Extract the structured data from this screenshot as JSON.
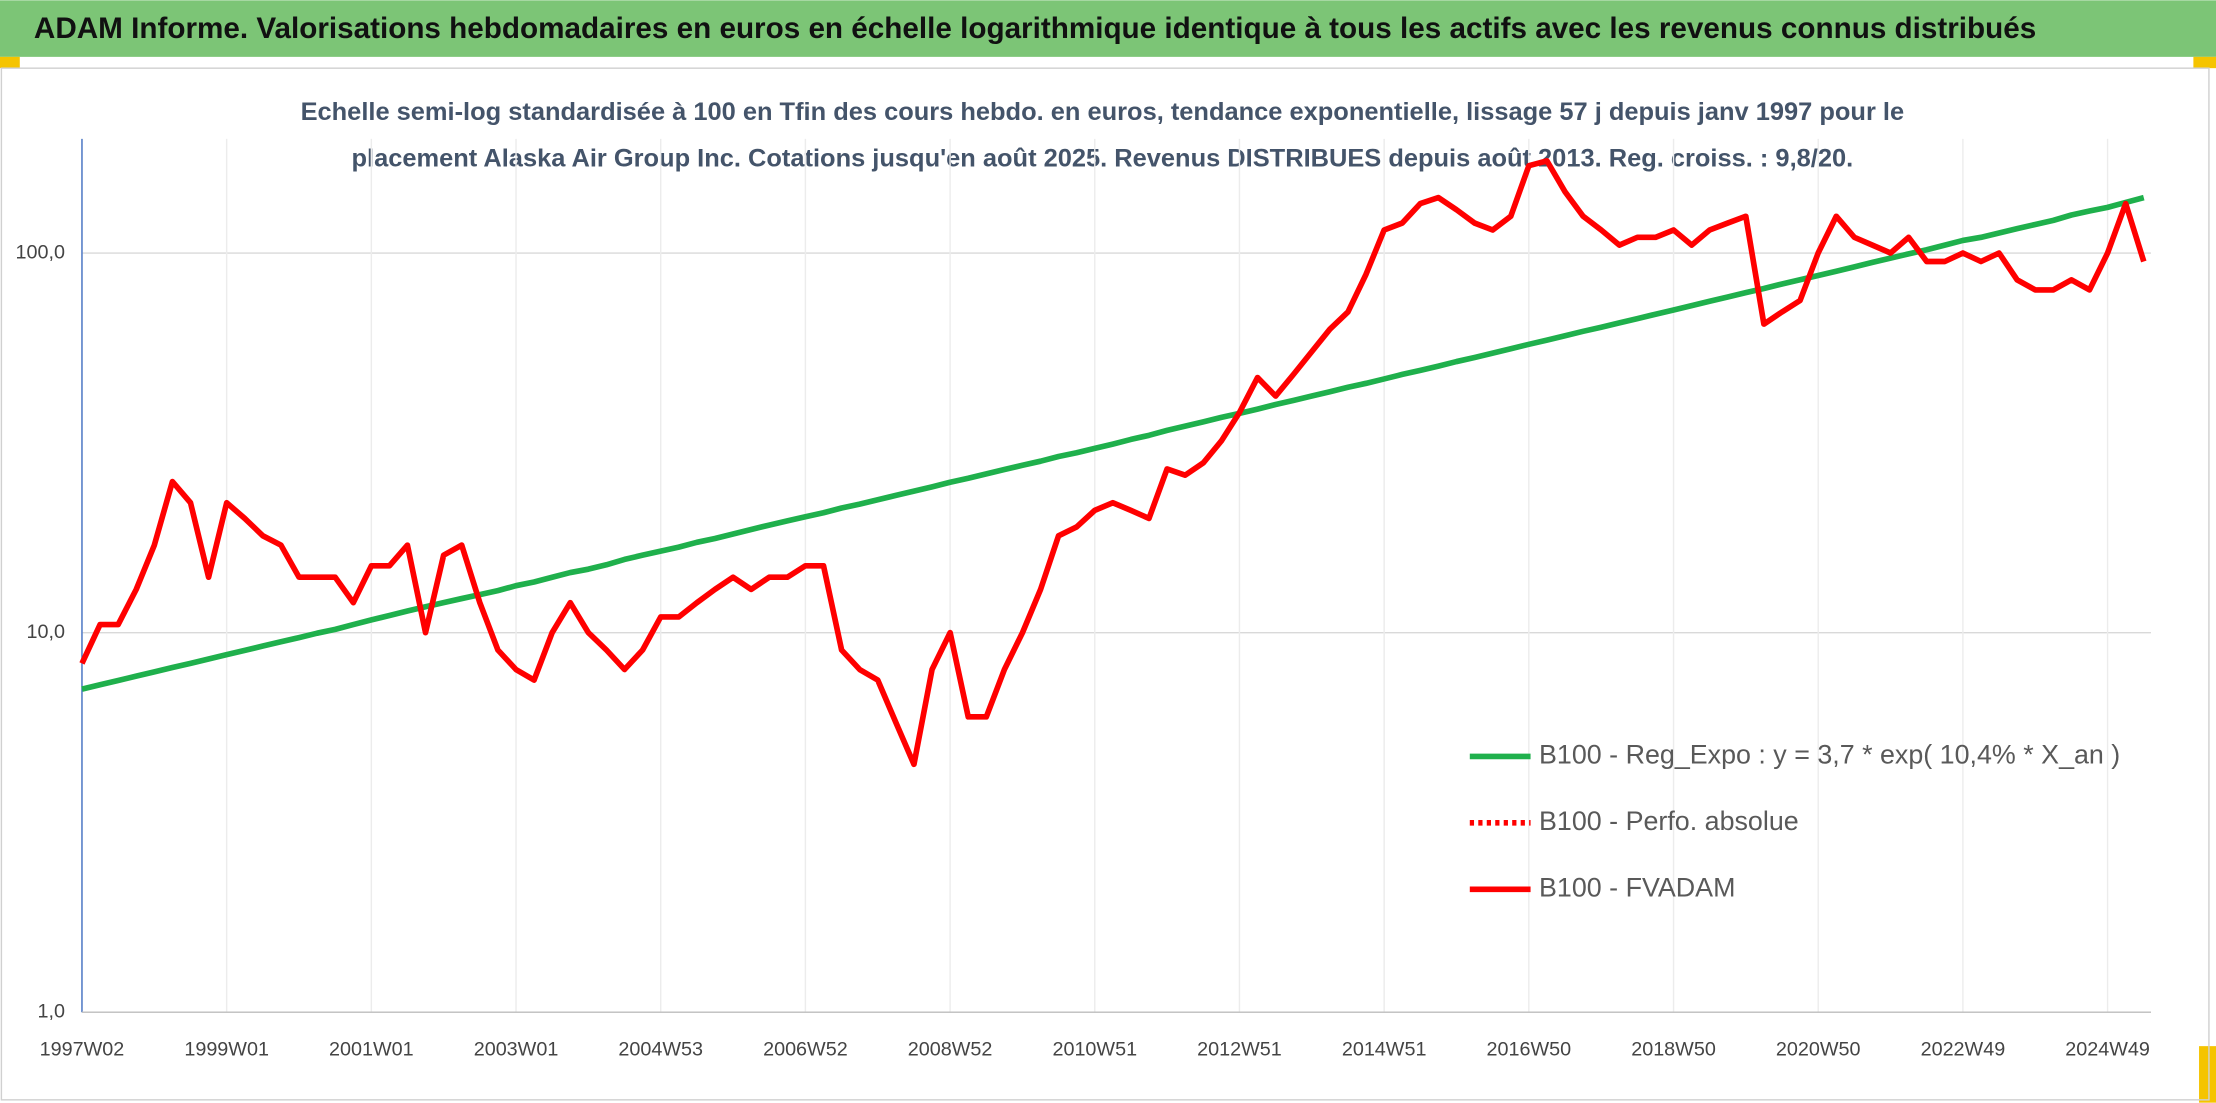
{
  "chart_data": {
    "type": "line",
    "title": "ADAM Informe. Valorisations hebdomadaires en euros en échelle logarithmique identique à tous les actifs avec les revenus connus distribués",
    "subtitle": [
      "Echelle semi-log standardisée à 100 en Tfin des cours hebdo. en euros, tendance exponentielle, lissage 57 j depuis janv 1997 pour le",
      "placement Alaska Air Group Inc. Cotations jusqu'en août 2025. Revenus DISTRIBUES depuis août 2013. Reg. croiss. : 9,8/20."
    ],
    "categories": [
      "1997W02",
      null,
      null,
      null,
      null,
      null,
      null,
      null,
      "1999W01",
      null,
      null,
      null,
      null,
      null,
      null,
      null,
      "2001W01",
      null,
      null,
      null,
      null,
      null,
      null,
      null,
      "2003W01",
      null,
      null,
      null,
      null,
      null,
      null,
      null,
      "2004W53",
      null,
      null,
      null,
      null,
      null,
      null,
      null,
      "2006W52",
      null,
      null,
      null,
      null,
      null,
      null,
      null,
      "2008W52",
      null,
      null,
      null,
      null,
      null,
      null,
      null,
      "2010W51",
      null,
      null,
      null,
      null,
      null,
      null,
      null,
      "2012W51",
      null,
      null,
      null,
      null,
      null,
      null,
      null,
      "2014W51",
      null,
      null,
      null,
      null,
      null,
      null,
      null,
      "2016W50",
      null,
      null,
      null,
      null,
      null,
      null,
      null,
      "2018W50",
      null,
      null,
      null,
      null,
      null,
      null,
      null,
      "2020W50",
      null,
      null,
      null,
      null,
      null,
      null,
      null,
      "2022W49",
      null,
      null,
      null,
      null,
      null,
      null,
      null,
      "2024W49",
      null,
      null
    ],
    "series": [
      {
        "name": "B100 - Reg_Expo : y = 3,7 * exp( 10,4% *  X_an )",
        "color": "#1fb04c",
        "dash": "solid",
        "values": [
          7.1,
          7.29,
          7.48,
          7.68,
          7.88,
          8.09,
          8.3,
          8.52,
          8.75,
          8.98,
          9.22,
          9.46,
          9.71,
          9.97,
          10.2,
          10.5,
          10.8,
          11.1,
          11.4,
          11.7,
          12.0,
          12.3,
          12.6,
          12.9,
          13.3,
          13.6,
          14.0,
          14.4,
          14.7,
          15.1,
          15.6,
          16.0,
          16.4,
          16.8,
          17.3,
          17.7,
          18.2,
          18.7,
          19.2,
          19.7,
          20.2,
          20.7,
          21.3,
          21.8,
          22.4,
          23.0,
          23.6,
          24.2,
          24.9,
          25.5,
          26.2,
          26.9,
          27.6,
          28.3,
          29.1,
          29.8,
          30.6,
          31.4,
          32.3,
          33.1,
          34.1,
          35.0,
          35.9,
          36.9,
          37.8,
          38.8,
          39.9,
          40.9,
          42.0,
          43.1,
          44.3,
          45.4,
          46.6,
          47.9,
          49.1,
          50.4,
          51.8,
          53.1,
          54.5,
          56.0,
          57.5,
          59.0,
          60.6,
          62.2,
          63.8,
          65.5,
          67.2,
          69.0,
          70.8,
          72.7,
          74.7,
          76.6,
          78.7,
          80.7,
          82.9,
          85.1,
          87.3,
          89.6,
          92.0,
          94.5,
          97.0,
          99.5,
          102,
          105,
          108,
          110,
          113,
          116,
          119,
          122,
          126,
          129,
          132,
          136,
          140
        ]
      },
      {
        "name": "B100 - Perfo. absolue",
        "color": "#ff0000",
        "dash": "dotted"
      },
      {
        "name": "B100 - FVADAM",
        "color": "#ff0000",
        "dash": "solid",
        "values": [
          8.3,
          10.5,
          10.5,
          13,
          17,
          25,
          22,
          14,
          22,
          20,
          18,
          17,
          14,
          14,
          14,
          12,
          15,
          15,
          17,
          10,
          16,
          17,
          12,
          9,
          8,
          7.5,
          10,
          12,
          10,
          9,
          8,
          9,
          11,
          11,
          12,
          13,
          14,
          13,
          14,
          14,
          15,
          15,
          9,
          8,
          7.5,
          5.8,
          4.5,
          8,
          10,
          6,
          6,
          8,
          10,
          13,
          18,
          19,
          21,
          22,
          21,
          20,
          27,
          26,
          28,
          32,
          38,
          47,
          42,
          48,
          55,
          63,
          70,
          88,
          115,
          120,
          135,
          140,
          130,
          120,
          115,
          125,
          170,
          175,
          145,
          125,
          115,
          105,
          110,
          110,
          115,
          105,
          115,
          120,
          125,
          65,
          70,
          75,
          100,
          125,
          110,
          105,
          100,
          110,
          95,
          95,
          100,
          95,
          100,
          85,
          80,
          80,
          85,
          80,
          100,
          135,
          95
        ]
      }
    ],
    "log_y": true,
    "ylim": [
      1,
      200
    ],
    "yticks": [
      {
        "value": 1,
        "label": "1,0"
      },
      {
        "value": 10,
        "label": "10,0"
      },
      {
        "value": 100,
        "label": "100,0"
      }
    ],
    "grid": true,
    "legend": "lower right"
  }
}
